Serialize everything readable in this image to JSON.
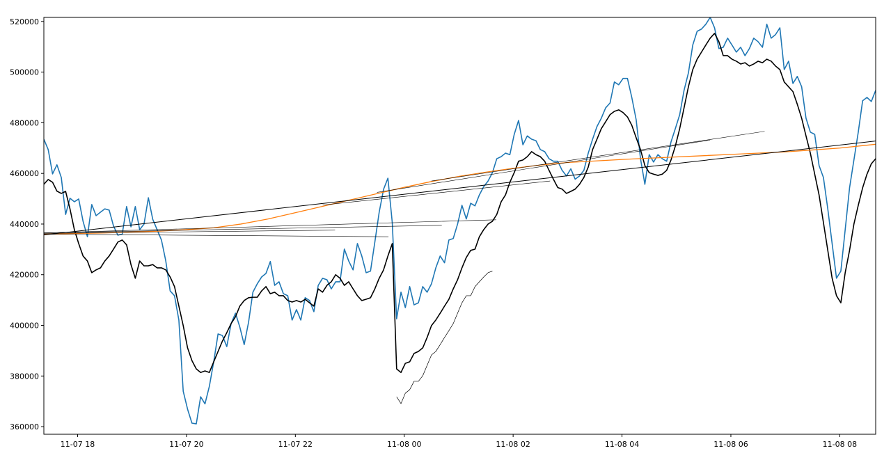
{
  "chart_data": {
    "type": "line",
    "xlim": [
      17.38,
      32.66
    ],
    "ylim": [
      357000,
      521600
    ],
    "xticks": [
      {
        "value": 18,
        "label": "11-07 18"
      },
      {
        "value": 20,
        "label": "11-07 20"
      },
      {
        "value": 22,
        "label": "11-07 22"
      },
      {
        "value": 24,
        "label": "11-08 00"
      },
      {
        "value": 26,
        "label": "11-08 02"
      },
      {
        "value": 28,
        "label": "11-08 04"
      },
      {
        "value": 30,
        "label": "11-08 06"
      },
      {
        "value": 32,
        "label": "11-08 08"
      }
    ],
    "yticks": [
      360000,
      380000,
      400000,
      420000,
      440000,
      460000,
      480000,
      500000,
      520000
    ],
    "grid": false,
    "x": [
      17.38,
      17.46,
      17.54,
      17.62,
      17.7,
      17.78,
      17.86,
      17.94,
      18.02,
      18.1,
      18.18,
      18.26,
      18.34,
      18.42,
      18.5,
      18.58,
      18.66,
      18.74,
      18.82,
      18.9,
      18.98,
      19.06,
      19.14,
      19.22,
      19.3,
      19.38,
      19.46,
      19.54,
      19.62,
      19.7,
      19.78,
      19.86,
      19.94,
      20.02,
      20.1,
      20.18,
      20.26,
      20.34,
      20.42,
      20.5,
      20.58,
      20.66,
      20.74,
      20.82,
      20.9,
      20.98,
      21.06,
      21.14,
      21.22,
      21.3,
      21.38,
      21.46,
      21.54,
      21.62,
      21.7,
      21.78,
      21.86,
      21.94,
      22.02,
      22.1,
      22.18,
      22.26,
      22.34,
      22.42,
      22.5,
      22.58,
      22.66,
      22.74,
      22.82,
      22.9,
      22.98,
      23.06,
      23.14,
      23.22,
      23.3,
      23.38,
      23.46,
      23.54,
      23.62,
      23.7,
      23.78,
      23.86,
      23.94,
      24.02,
      24.1,
      24.18,
      24.26,
      24.34,
      24.42,
      24.5,
      24.58,
      24.66,
      24.74,
      24.82,
      24.9,
      24.98,
      25.06,
      25.14,
      25.22,
      25.3,
      25.38,
      25.46,
      25.54,
      25.62,
      25.7,
      25.78,
      25.86,
      25.94,
      26.02,
      26.1,
      26.18,
      26.26,
      26.34,
      26.42,
      26.5,
      26.58,
      26.66,
      26.74,
      26.82,
      26.9,
      26.98,
      27.06,
      27.14,
      27.22,
      27.3,
      27.38,
      27.46,
      27.54,
      27.62,
      27.7,
      27.78,
      27.86,
      27.94,
      28.02,
      28.1,
      28.18,
      28.26,
      28.34,
      28.42,
      28.5,
      28.58,
      28.66,
      28.74,
      28.82,
      28.9,
      28.98,
      29.06,
      29.14,
      29.22,
      29.3,
      29.38,
      29.46,
      29.54,
      29.62,
      29.7,
      29.78,
      29.86,
      29.94,
      30.02,
      30.1,
      30.18,
      30.26,
      30.34,
      30.42,
      30.5,
      30.58,
      30.66,
      30.74,
      30.82,
      30.9,
      30.98,
      31.06,
      31.14,
      31.22,
      31.3,
      31.38,
      31.46,
      31.54,
      31.62,
      31.7,
      31.78,
      31.86,
      31.94,
      32.02,
      32.1,
      32.18,
      32.26,
      32.34,
      32.42,
      32.5,
      32.58,
      32.66
    ],
    "series": [
      {
        "color": "#1f77b4",
        "linewidth": 1.6,
        "values": [
          473500,
          469400,
          459800,
          463400,
          458400,
          443800,
          450200,
          448800,
          449900,
          441100,
          435000,
          447700,
          443300,
          444700,
          446000,
          445500,
          439200,
          435600,
          436100,
          446900,
          438900,
          446900,
          437800,
          440000,
          450400,
          441900,
          437800,
          433700,
          425400,
          413600,
          411700,
          402100,
          374000,
          366900,
          361400,
          361100,
          371800,
          369000,
          375900,
          385600,
          396600,
          396000,
          391600,
          400700,
          404800,
          399300,
          392400,
          401200,
          413100,
          416400,
          419100,
          420500,
          425200,
          415800,
          417200,
          412500,
          411700,
          402100,
          406200,
          402100,
          410900,
          409800,
          405400,
          415800,
          418600,
          418000,
          414400,
          417200,
          417200,
          430100,
          425400,
          421900,
          432300,
          427400,
          420800,
          421400,
          432900,
          444700,
          453700,
          458100,
          440600,
          402600,
          413100,
          407000,
          415300,
          408100,
          408900,
          415300,
          413100,
          416400,
          422700,
          427400,
          424700,
          433700,
          434300,
          440000,
          447400,
          442000,
          448200,
          447200,
          451500,
          454800,
          457000,
          460300,
          465800,
          466600,
          468000,
          467400,
          475400,
          480900,
          471300,
          474800,
          473500,
          472900,
          469400,
          468600,
          465800,
          464800,
          464800,
          461200,
          459000,
          461800,
          457700,
          459000,
          461200,
          468000,
          473500,
          478500,
          481800,
          485900,
          487800,
          496100,
          495000,
          497500,
          497500,
          490000,
          481200,
          465800,
          455700,
          467400,
          464500,
          467400,
          465800,
          464800,
          472400,
          477700,
          483200,
          492800,
          499700,
          510700,
          516100,
          517000,
          518900,
          521600,
          517500,
          509300,
          509800,
          513400,
          510700,
          507900,
          509800,
          506500,
          509300,
          513400,
          512000,
          509800,
          518900,
          513400,
          514800,
          517500,
          501000,
          504300,
          495500,
          498300,
          494200,
          481800,
          476300,
          475400,
          463100,
          458400,
          446000,
          432300,
          418600,
          421400,
          437800,
          454300,
          465300,
          476300,
          488700,
          490000,
          488400,
          492800
        ]
      },
      {
        "color": "#000000",
        "linewidth": 1.6,
        "values": [
          455700,
          457600,
          456500,
          453000,
          452100,
          452900,
          446000,
          437800,
          432300,
          427400,
          425400,
          420800,
          421900,
          422700,
          425400,
          427400,
          430100,
          432900,
          433700,
          431800,
          424000,
          418600,
          425400,
          423500,
          423500,
          424000,
          422700,
          422700,
          421900,
          419100,
          415300,
          407600,
          399900,
          391100,
          386100,
          382800,
          381400,
          382000,
          381400,
          385600,
          389700,
          393800,
          397100,
          400700,
          403400,
          407600,
          409800,
          410900,
          411100,
          411100,
          413600,
          415300,
          412500,
          413100,
          411700,
          411700,
          409800,
          409200,
          409800,
          409200,
          410300,
          408900,
          407600,
          414400,
          413100,
          415800,
          417200,
          420000,
          418600,
          415800,
          417200,
          414400,
          411700,
          409800,
          410300,
          410900,
          414400,
          418600,
          421900,
          427400,
          432300,
          382800,
          381400,
          385000,
          385600,
          388900,
          389700,
          391100,
          395200,
          399900,
          402100,
          404800,
          407600,
          410300,
          414400,
          418000,
          422700,
          426800,
          429600,
          430100,
          435000,
          437800,
          440000,
          441100,
          443800,
          448800,
          451500,
          456500,
          460300,
          464800,
          465300,
          466600,
          468600,
          467400,
          466600,
          464800,
          461200,
          457700,
          454400,
          453800,
          452100,
          452900,
          453800,
          455700,
          458400,
          462500,
          469400,
          473500,
          477700,
          480400,
          483200,
          484500,
          485100,
          484000,
          482300,
          479000,
          474100,
          469400,
          463100,
          460300,
          459700,
          459200,
          459700,
          461200,
          465300,
          470800,
          477700,
          485900,
          494200,
          501000,
          505100,
          507900,
          510700,
          513400,
          515300,
          512000,
          506500,
          506500,
          505100,
          504300,
          503200,
          503700,
          502400,
          503200,
          504300,
          503700,
          505100,
          504300,
          502400,
          501000,
          496100,
          494200,
          492300,
          487300,
          481800,
          474800,
          468000,
          459700,
          451500,
          440600,
          429600,
          418600,
          411700,
          408900,
          420800,
          429600,
          440000,
          447400,
          454300,
          459700,
          463800,
          465800
        ]
      },
      {
        "color": "#000000",
        "linewidth": 0.7,
        "x": [
          23.86,
          23.94,
          24.02,
          24.1,
          24.18,
          24.26,
          24.34,
          24.42,
          24.5,
          24.58,
          24.66,
          24.74,
          24.82,
          24.9,
          24.98,
          25.06,
          25.14,
          25.22,
          25.3,
          25.38,
          25.46,
          25.54,
          25.62
        ],
        "values": [
          371800,
          369100,
          373200,
          374600,
          377900,
          377900,
          380100,
          384200,
          388300,
          389700,
          392400,
          395200,
          397900,
          400700,
          404800,
          408900,
          411700,
          411700,
          415300,
          417200,
          419100,
          420800,
          421400
        ]
      },
      {
        "color": "#ff7f0e",
        "linewidth": 1.3,
        "x": [
          17.38,
          18.5,
          19.5,
          20,
          20.5,
          21,
          21.5,
          22,
          22.5,
          23,
          23.5,
          24,
          24.5,
          25,
          25.5,
          26,
          26.5,
          27,
          28,
          29,
          30,
          31,
          32,
          32.66
        ],
        "values": [
          436000,
          436500,
          437200,
          437800,
          438500,
          440000,
          442000,
          444500,
          447000,
          449500,
          452000,
          454500,
          456800,
          458800,
          460500,
          462000,
          463300,
          464300,
          465500,
          466500,
          467500,
          468500,
          470000,
          471500
        ]
      },
      {
        "color": "#000000",
        "linewidth": 0.6,
        "x": [
          17.38,
          23.71
        ],
        "values": [
          436000,
          435000
        ]
      },
      {
        "color": "#000000",
        "linewidth": 0.6,
        "x": [
          17.38,
          22.73
        ],
        "values": [
          436300,
          437600
        ]
      },
      {
        "color": "#000000",
        "linewidth": 0.6,
        "x": [
          17.38,
          24.69
        ],
        "values": [
          436500,
          439500
        ]
      },
      {
        "color": "#000000",
        "linewidth": 0.6,
        "x": [
          17.38,
          25.69
        ],
        "values": [
          436500,
          441700
        ]
      },
      {
        "color": "#000000",
        "linewidth": 0.6,
        "x": [
          22.5,
          26.68
        ],
        "values": [
          447500,
          457000
        ]
      },
      {
        "color": "#000000",
        "linewidth": 0.6,
        "x": [
          23.5,
          29.62
        ],
        "values": [
          452500,
          473200
        ]
      },
      {
        "color": "#000000",
        "linewidth": 0.6,
        "x": [
          24.5,
          30.62
        ],
        "values": [
          457000,
          476600
        ]
      },
      {
        "color": "#000000",
        "linewidth": 1.0,
        "x": [
          17.38,
          32.66
        ],
        "values": [
          435700,
          472800
        ]
      }
    ]
  }
}
